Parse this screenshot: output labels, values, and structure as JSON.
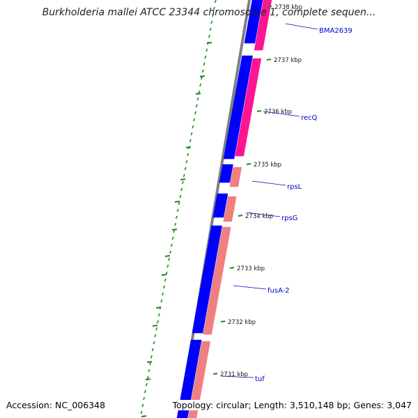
{
  "title": "Burkholderia mallei ATCC 23344 chromosome 1, complete sequen...",
  "accession_label": "Accession: NC_006348",
  "summary": "Topology: circular; Length: 3,510,148 bp; Genes: 3,047",
  "colors": {
    "backbone": "#7f7f7f",
    "forward_strand_genes": "#0000ff",
    "reverse_strand_genes_highlight": "#ff1493",
    "reverse_strand_genes": "#f08080",
    "gc_ticks": "#1a8a1a",
    "gene_labels": "#0000cc",
    "tick_labels": "#111111"
  },
  "scale_labels": [
    "2738 kbp",
    "2737 kbp",
    "2736 kbp",
    "2735 kbp",
    "2734 kbp",
    "2733 kbp",
    "2732 kbp",
    "2731 kbp"
  ],
  "gene_labels": [
    "BMA2639",
    "recQ",
    "rpsL",
    "rpsG",
    "fusA-2",
    "tuf"
  ]
}
